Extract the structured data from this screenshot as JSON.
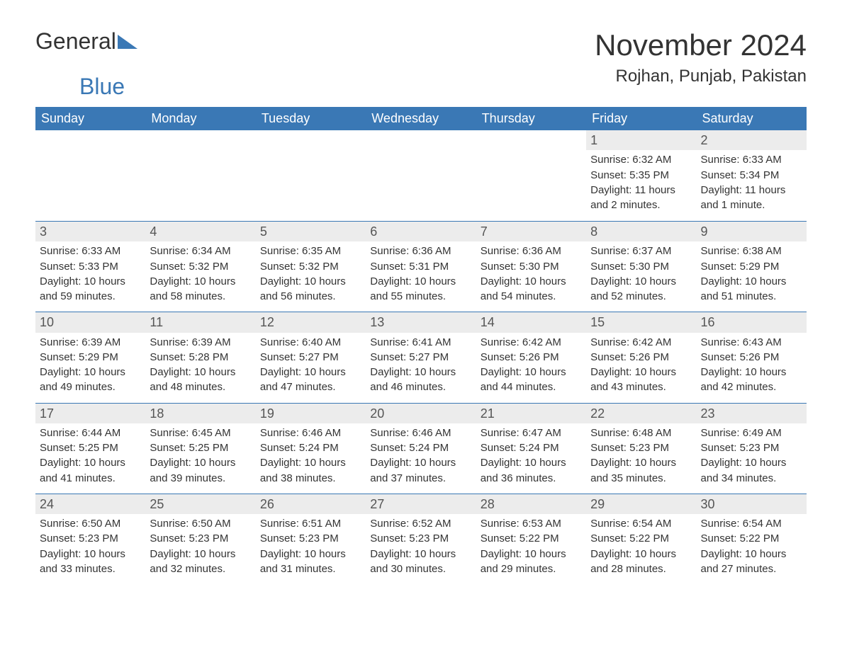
{
  "logo": {
    "text1": "General",
    "text2": "Blue",
    "tri_color": "#3a78b5"
  },
  "title": "November 2024",
  "location": "Rojhan, Punjab, Pakistan",
  "colors": {
    "header_bg": "#3a78b5",
    "header_fg": "#ffffff",
    "daynum_bg": "#ececec",
    "text": "#333333",
    "border": "#3a78b5",
    "background": "#ffffff"
  },
  "typography": {
    "title_fontsize": 42,
    "location_fontsize": 24,
    "header_fontsize": 18,
    "daynum_fontsize": 18,
    "body_fontsize": 15
  },
  "day_labels": [
    "Sunday",
    "Monday",
    "Tuesday",
    "Wednesday",
    "Thursday",
    "Friday",
    "Saturday"
  ],
  "weeks": [
    [
      null,
      null,
      null,
      null,
      null,
      {
        "n": "1",
        "sunrise": "Sunrise: 6:32 AM",
        "sunset": "Sunset: 5:35 PM",
        "day1": "Daylight: 11 hours",
        "day2": "and 2 minutes."
      },
      {
        "n": "2",
        "sunrise": "Sunrise: 6:33 AM",
        "sunset": "Sunset: 5:34 PM",
        "day1": "Daylight: 11 hours",
        "day2": "and 1 minute."
      }
    ],
    [
      {
        "n": "3",
        "sunrise": "Sunrise: 6:33 AM",
        "sunset": "Sunset: 5:33 PM",
        "day1": "Daylight: 10 hours",
        "day2": "and 59 minutes."
      },
      {
        "n": "4",
        "sunrise": "Sunrise: 6:34 AM",
        "sunset": "Sunset: 5:32 PM",
        "day1": "Daylight: 10 hours",
        "day2": "and 58 minutes."
      },
      {
        "n": "5",
        "sunrise": "Sunrise: 6:35 AM",
        "sunset": "Sunset: 5:32 PM",
        "day1": "Daylight: 10 hours",
        "day2": "and 56 minutes."
      },
      {
        "n": "6",
        "sunrise": "Sunrise: 6:36 AM",
        "sunset": "Sunset: 5:31 PM",
        "day1": "Daylight: 10 hours",
        "day2": "and 55 minutes."
      },
      {
        "n": "7",
        "sunrise": "Sunrise: 6:36 AM",
        "sunset": "Sunset: 5:30 PM",
        "day1": "Daylight: 10 hours",
        "day2": "and 54 minutes."
      },
      {
        "n": "8",
        "sunrise": "Sunrise: 6:37 AM",
        "sunset": "Sunset: 5:30 PM",
        "day1": "Daylight: 10 hours",
        "day2": "and 52 minutes."
      },
      {
        "n": "9",
        "sunrise": "Sunrise: 6:38 AM",
        "sunset": "Sunset: 5:29 PM",
        "day1": "Daylight: 10 hours",
        "day2": "and 51 minutes."
      }
    ],
    [
      {
        "n": "10",
        "sunrise": "Sunrise: 6:39 AM",
        "sunset": "Sunset: 5:29 PM",
        "day1": "Daylight: 10 hours",
        "day2": "and 49 minutes."
      },
      {
        "n": "11",
        "sunrise": "Sunrise: 6:39 AM",
        "sunset": "Sunset: 5:28 PM",
        "day1": "Daylight: 10 hours",
        "day2": "and 48 minutes."
      },
      {
        "n": "12",
        "sunrise": "Sunrise: 6:40 AM",
        "sunset": "Sunset: 5:27 PM",
        "day1": "Daylight: 10 hours",
        "day2": "and 47 minutes."
      },
      {
        "n": "13",
        "sunrise": "Sunrise: 6:41 AM",
        "sunset": "Sunset: 5:27 PM",
        "day1": "Daylight: 10 hours",
        "day2": "and 46 minutes."
      },
      {
        "n": "14",
        "sunrise": "Sunrise: 6:42 AM",
        "sunset": "Sunset: 5:26 PM",
        "day1": "Daylight: 10 hours",
        "day2": "and 44 minutes."
      },
      {
        "n": "15",
        "sunrise": "Sunrise: 6:42 AM",
        "sunset": "Sunset: 5:26 PM",
        "day1": "Daylight: 10 hours",
        "day2": "and 43 minutes."
      },
      {
        "n": "16",
        "sunrise": "Sunrise: 6:43 AM",
        "sunset": "Sunset: 5:26 PM",
        "day1": "Daylight: 10 hours",
        "day2": "and 42 minutes."
      }
    ],
    [
      {
        "n": "17",
        "sunrise": "Sunrise: 6:44 AM",
        "sunset": "Sunset: 5:25 PM",
        "day1": "Daylight: 10 hours",
        "day2": "and 41 minutes."
      },
      {
        "n": "18",
        "sunrise": "Sunrise: 6:45 AM",
        "sunset": "Sunset: 5:25 PM",
        "day1": "Daylight: 10 hours",
        "day2": "and 39 minutes."
      },
      {
        "n": "19",
        "sunrise": "Sunrise: 6:46 AM",
        "sunset": "Sunset: 5:24 PM",
        "day1": "Daylight: 10 hours",
        "day2": "and 38 minutes."
      },
      {
        "n": "20",
        "sunrise": "Sunrise: 6:46 AM",
        "sunset": "Sunset: 5:24 PM",
        "day1": "Daylight: 10 hours",
        "day2": "and 37 minutes."
      },
      {
        "n": "21",
        "sunrise": "Sunrise: 6:47 AM",
        "sunset": "Sunset: 5:24 PM",
        "day1": "Daylight: 10 hours",
        "day2": "and 36 minutes."
      },
      {
        "n": "22",
        "sunrise": "Sunrise: 6:48 AM",
        "sunset": "Sunset: 5:23 PM",
        "day1": "Daylight: 10 hours",
        "day2": "and 35 minutes."
      },
      {
        "n": "23",
        "sunrise": "Sunrise: 6:49 AM",
        "sunset": "Sunset: 5:23 PM",
        "day1": "Daylight: 10 hours",
        "day2": "and 34 minutes."
      }
    ],
    [
      {
        "n": "24",
        "sunrise": "Sunrise: 6:50 AM",
        "sunset": "Sunset: 5:23 PM",
        "day1": "Daylight: 10 hours",
        "day2": "and 33 minutes."
      },
      {
        "n": "25",
        "sunrise": "Sunrise: 6:50 AM",
        "sunset": "Sunset: 5:23 PM",
        "day1": "Daylight: 10 hours",
        "day2": "and 32 minutes."
      },
      {
        "n": "26",
        "sunrise": "Sunrise: 6:51 AM",
        "sunset": "Sunset: 5:23 PM",
        "day1": "Daylight: 10 hours",
        "day2": "and 31 minutes."
      },
      {
        "n": "27",
        "sunrise": "Sunrise: 6:52 AM",
        "sunset": "Sunset: 5:23 PM",
        "day1": "Daylight: 10 hours",
        "day2": "and 30 minutes."
      },
      {
        "n": "28",
        "sunrise": "Sunrise: 6:53 AM",
        "sunset": "Sunset: 5:22 PM",
        "day1": "Daylight: 10 hours",
        "day2": "and 29 minutes."
      },
      {
        "n": "29",
        "sunrise": "Sunrise: 6:54 AM",
        "sunset": "Sunset: 5:22 PM",
        "day1": "Daylight: 10 hours",
        "day2": "and 28 minutes."
      },
      {
        "n": "30",
        "sunrise": "Sunrise: 6:54 AM",
        "sunset": "Sunset: 5:22 PM",
        "day1": "Daylight: 10 hours",
        "day2": "and 27 minutes."
      }
    ]
  ]
}
